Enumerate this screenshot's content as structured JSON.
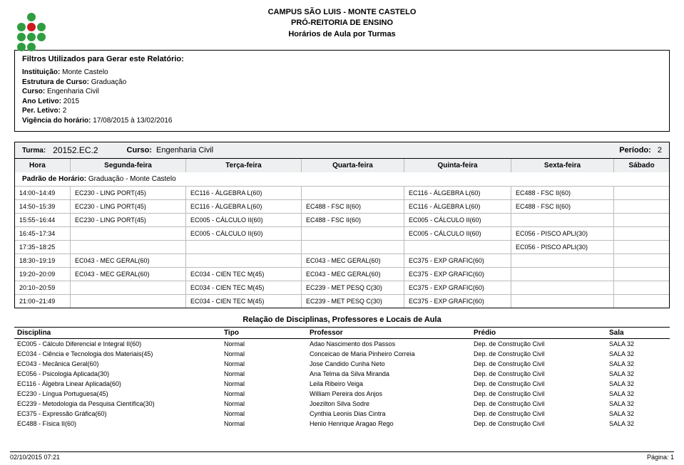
{
  "header": {
    "line1": "CAMPUS SÃO LUIS - MONTE CASTELO",
    "line2": "PRÓ-REITORIA DE ENSINO",
    "line3": "Horários de Aula por Turmas"
  },
  "filters": {
    "title": "Filtros Utilizados para Gerar este Relatório:",
    "inst_label": "Instituição:",
    "inst_value": "Monte Castelo",
    "estrutura_label": "Estrutura de Curso:",
    "estrutura_value": "Graduação",
    "curso_label": "Curso:",
    "curso_value": "Engenharia Civil",
    "ano_label": "Ano Letivo:",
    "ano_value": "2015",
    "per_label": "Per. Letivo:",
    "per_value": "2",
    "vig_label": "Vigência do horário:",
    "vig_value": "17/08/2015 à 13/02/2016"
  },
  "turma": {
    "turma_label": "Turma:",
    "turma_value": "20152.EC.2",
    "curso_label": "Curso:",
    "curso_value": "Engenharia Civil",
    "periodo_label": "Período:",
    "periodo_value": "2"
  },
  "days": {
    "hora": "Hora",
    "seg": "Segunda-feira",
    "ter": "Terça-feira",
    "qua": "Quarta-feira",
    "qui": "Quinta-feira",
    "sex": "Sexta-feira",
    "sab": "Sábado"
  },
  "padrao": {
    "label": "Padrão de Horário:",
    "value": "Graduação - Monte Castelo"
  },
  "schedule": [
    {
      "hora": "14:00~14:49",
      "seg": "EC230 - LING PORT(45)",
      "ter": "EC116 - ÁLGEBRA L(60)",
      "qua": "",
      "qui": "EC116 - ÁLGEBRA L(60)",
      "sex": "EC488 - FSC II(60)",
      "sab": ""
    },
    {
      "hora": "14:50~15:39",
      "seg": "EC230 - LING PORT(45)",
      "ter": "EC116 - ÁLGEBRA L(60)",
      "qua": "EC488 - FSC II(60)",
      "qui": "EC116 - ÁLGEBRA L(60)",
      "sex": "EC488 - FSC II(60)",
      "sab": ""
    },
    {
      "hora": "15:55~16:44",
      "seg": "EC230 - LING PORT(45)",
      "ter": "EC005 - CÁLCULO II(60)",
      "qua": "EC488 - FSC II(60)",
      "qui": "EC005 - CÁLCULO II(60)",
      "sex": "",
      "sab": ""
    },
    {
      "hora": "16:45~17:34",
      "seg": "",
      "ter": "EC005 - CÁLCULO II(60)",
      "qua": "",
      "qui": "EC005 - CÁLCULO II(60)",
      "sex": "EC056 - PISCO APLI(30)",
      "sab": ""
    },
    {
      "hora": "17:35~18:25",
      "seg": "",
      "ter": "",
      "qua": "",
      "qui": "",
      "sex": "EC056 - PISCO APLI(30)",
      "sab": ""
    },
    {
      "hora": "18:30~19:19",
      "seg": "EC043 - MEC GERAL(60)",
      "ter": "",
      "qua": "EC043 - MEC GERAL(60)",
      "qui": "EC375 - EXP GRAFIC(60)",
      "sex": "",
      "sab": ""
    },
    {
      "hora": "19:20~20:09",
      "seg": "EC043 - MEC GERAL(60)",
      "ter": "EC034 - CIEN TEC M(45)",
      "qua": "EC043 - MEC GERAL(60)",
      "qui": "EC375 - EXP GRAFIC(60)",
      "sex": "",
      "sab": ""
    },
    {
      "hora": "20:10~20:59",
      "seg": "",
      "ter": "EC034 - CIEN TEC M(45)",
      "qua": "EC239 - MET PESQ C(30)",
      "qui": "EC375 - EXP GRAFIC(60)",
      "sex": "",
      "sab": ""
    },
    {
      "hora": "21:00~21:49",
      "seg": "",
      "ter": "EC034 - CIEN TEC M(45)",
      "qua": "EC239 - MET PESQ C(30)",
      "qui": "EC375 - EXP GRAFIC(60)",
      "sex": "",
      "sab": ""
    }
  ],
  "rel_title": "Relação de Disciplinas, Professores e Locais de Aula",
  "disc_header": {
    "disc": "Disciplina",
    "tipo": "Tipo",
    "prof": "Professor",
    "pred": "Prédio",
    "sala": "Sala"
  },
  "disciplines": [
    {
      "disc": "EC005 - Cálculo Diferencial e Integral II(60)",
      "tipo": "Normal",
      "prof": "Adao Nascimento dos Passos",
      "pred": "Dep. de Construção Civil",
      "sala": "SALA 32"
    },
    {
      "disc": "EC034 - Ciência e Tecnologia dos Materiais(45)",
      "tipo": "Normal",
      "prof": "Conceicao de Maria Pinheiro Correia",
      "pred": "Dep. de Construção Civil",
      "sala": "SALA 32"
    },
    {
      "disc": "EC043 - Mecânica Geral(60)",
      "tipo": "Normal",
      "prof": "Jose Candido Cunha Neto",
      "pred": "Dep. de Construção Civil",
      "sala": "SALA 32"
    },
    {
      "disc": "EC056 - Psicologia Aplicada(30)",
      "tipo": "Normal",
      "prof": "Ana Telma da Silva Miranda",
      "pred": "Dep. de Construção Civil",
      "sala": "SALA 32"
    },
    {
      "disc": "EC116 - Álgebra Linear Aplicada(60)",
      "tipo": "Normal",
      "prof": "Leila Ribeiro Veiga",
      "pred": "Dep. de Construção Civil",
      "sala": "SALA 32"
    },
    {
      "disc": "EC230 - Língua Portuguesa(45)",
      "tipo": "Normal",
      "prof": "William Pereira dos Anjos",
      "pred": "Dep. de Construção Civil",
      "sala": "SALA 32"
    },
    {
      "disc": "EC239 - Metodologia da Pesquisa Científica(30)",
      "tipo": "Normal",
      "prof": "Joezilton Silva Sodre",
      "pred": "Dep. de Construção Civil",
      "sala": "SALA 32"
    },
    {
      "disc": "EC375 - Expressão Gráfica(60)",
      "tipo": "Normal",
      "prof": "Cynthia Leonis Dias Cintra",
      "pred": "Dep. de Construção Civil",
      "sala": "SALA 32"
    },
    {
      "disc": "EC488 - Física II(60)",
      "tipo": "Normal",
      "prof": "Henio Henrique Aragao Rego",
      "pred": "Dep. de Construção Civil",
      "sala": "SALA 32"
    }
  ],
  "footer": {
    "left": "02/10/2015 07:21",
    "right": "Página: 1"
  }
}
